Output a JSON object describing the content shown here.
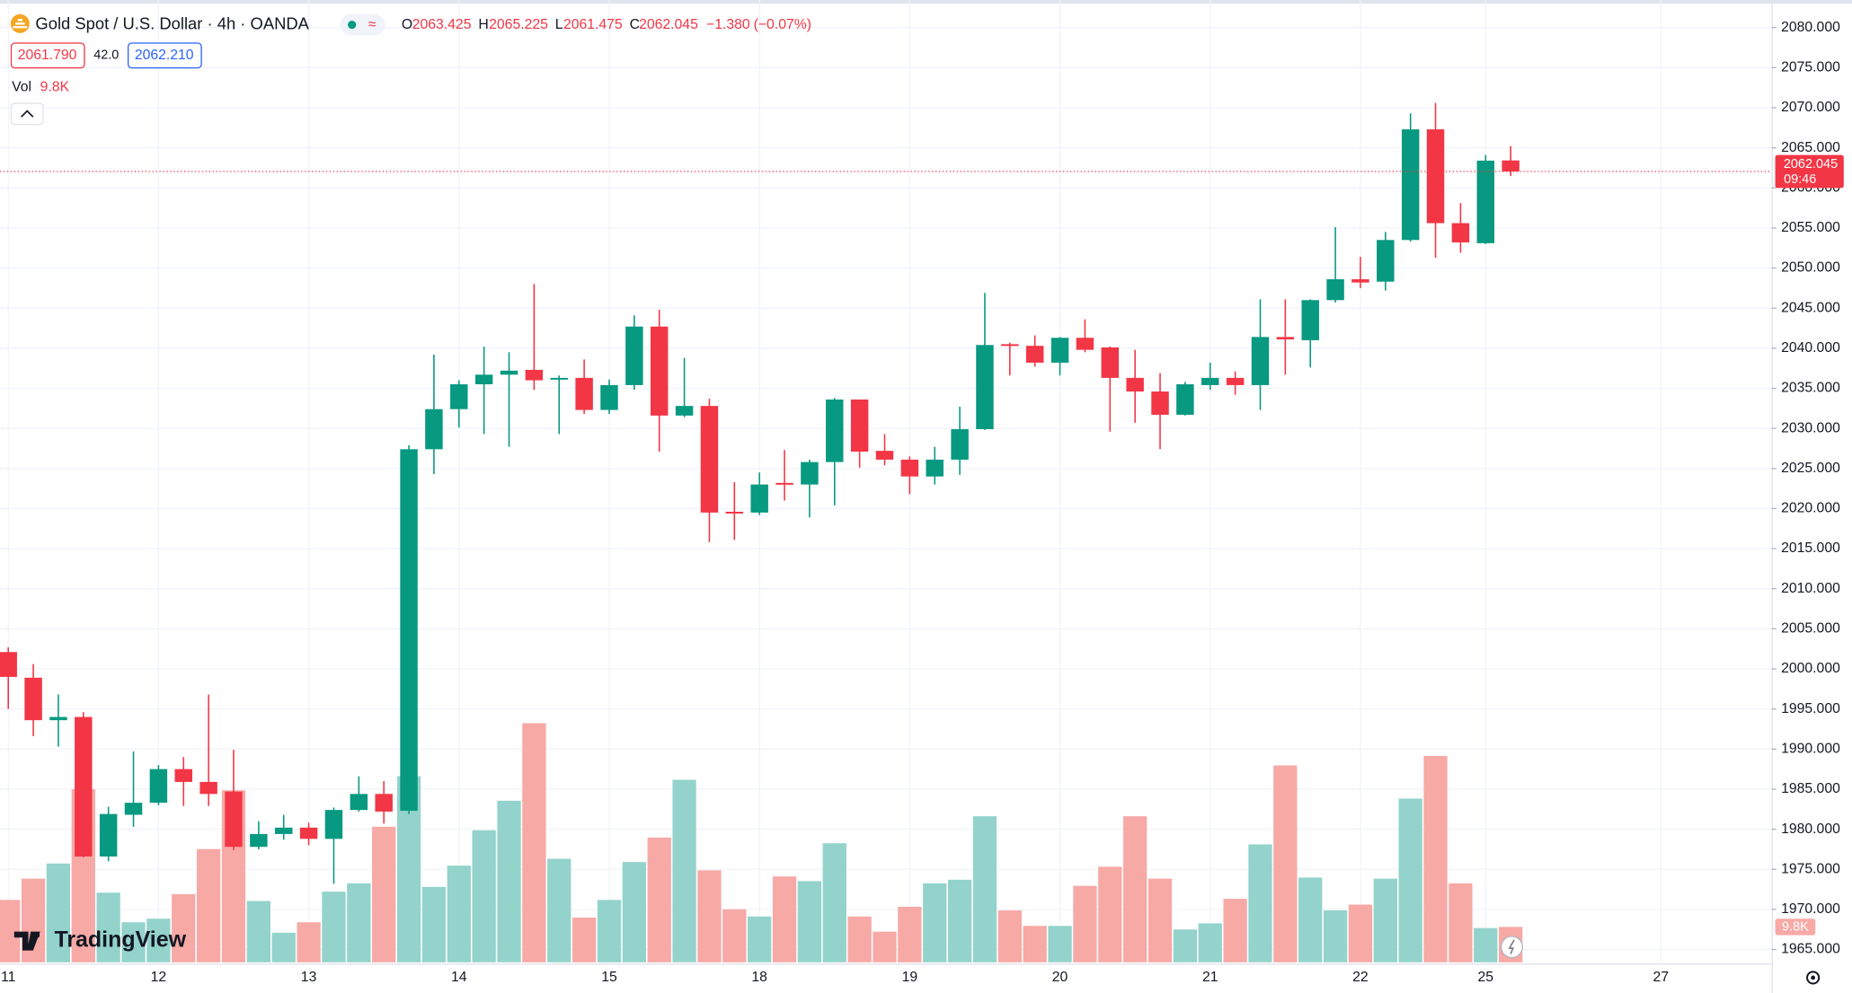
{
  "chart_data": {
    "type": "candlestick",
    "title": "Gold Spot / U.S. Dollar · 4h · OANDA",
    "ohlc_labels": [
      "O",
      "H",
      "L",
      "C"
    ],
    "change": {
      "value": -1.38,
      "label": "−1.380"
    },
    "change_percent": {
      "value": -0.07,
      "label": "(−0.07%)"
    },
    "quote": {
      "bid": {
        "value": 2061.79,
        "label": "2061.790"
      },
      "spread": {
        "value": 42,
        "label": "42.0"
      },
      "ask": {
        "value": 2062.21,
        "label": "2062.210"
      }
    },
    "countdown": "09:46",
    "watermark": "TradingView",
    "categories": [
      "11",
      null,
      null,
      null,
      null,
      null,
      "12",
      null,
      null,
      null,
      null,
      null,
      "13",
      null,
      null,
      null,
      null,
      null,
      "14",
      null,
      null,
      null,
      null,
      null,
      "15",
      null,
      null,
      null,
      null,
      null,
      "18",
      null,
      null,
      null,
      null,
      null,
      "19",
      null,
      null,
      null,
      null,
      null,
      "20",
      null,
      null,
      null,
      null,
      null,
      "21",
      null,
      null,
      null,
      null,
      null,
      "22",
      null,
      null,
      null,
      null,
      "25",
      null,
      null,
      null,
      null,
      null,
      null,
      "27"
    ],
    "open": [
      2002.1,
      1998.9,
      1993.6,
      1994.0,
      1976.6,
      1981.8,
      1983.3,
      1987.5,
      1985.9,
      1984.7,
      1977.8,
      1979.4,
      1980.2,
      1978.8,
      1982.4,
      1984.4,
      1982.3,
      2027.4,
      2032.4,
      2035.5,
      2036.7,
      2037.3,
      2036.1,
      2036.3,
      2032.3,
      2035.4,
      2042.7,
      2031.6,
      2032.8,
      2019.6,
      2019.5,
      2023.2,
      2023.0,
      2025.8,
      2033.6,
      2027.2,
      2026.1,
      2024.0,
      2026.1,
      2029.9,
      2040.5,
      2040.3,
      2038.2,
      2041.3,
      2040.1,
      2036.3,
      2034.6,
      2031.7,
      2035.4,
      2036.3,
      2035.4,
      2041.4,
      2041.0,
      2046.0,
      2048.6,
      2048.3,
      2053.5,
      2067.3,
      2055.6,
      2053.1,
      2063.425,
      null,
      null,
      null,
      null,
      null,
      null
    ],
    "high": [
      2002.7,
      2000.6,
      1996.8,
      1994.6,
      1982.8,
      1989.7,
      1988.0,
      1989.0,
      1996.8,
      1989.9,
      1981.0,
      1981.8,
      1980.8,
      1982.7,
      1986.6,
      1986.0,
      2027.9,
      2039.2,
      2036.0,
      2040.2,
      2039.5,
      2048.0,
      2036.6,
      2038.6,
      2036.1,
      2044.1,
      2044.8,
      2038.8,
      2033.7,
      2023.3,
      2024.5,
      2027.3,
      2026.1,
      2033.8,
      2033.6,
      2029.3,
      2026.5,
      2027.7,
      2032.7,
      2046.9,
      2040.7,
      2041.6,
      2041.4,
      2043.6,
      2040.2,
      2039.8,
      2036.9,
      2035.8,
      2038.2,
      2037.1,
      2046.1,
      2046.1,
      2046.1,
      2055.1,
      2051.4,
      2054.5,
      2069.3,
      2070.6,
      2058.1,
      2064.1,
      2065.225,
      null,
      null,
      null,
      null,
      null,
      null
    ],
    "low": [
      1995.0,
      1991.6,
      1990.3,
      1976.5,
      1976.0,
      1980.3,
      1983.0,
      1982.9,
      1982.9,
      1977.4,
      1977.5,
      1978.7,
      1978.0,
      1973.2,
      1982.2,
      1980.7,
      1981.9,
      2024.3,
      2030.1,
      2029.3,
      2027.7,
      2034.8,
      2029.3,
      2031.8,
      2031.8,
      2034.8,
      2027.1,
      2031.4,
      2015.8,
      2016.1,
      2019.2,
      2021.0,
      2018.9,
      2020.4,
      2025.1,
      2025.4,
      2021.8,
      2023.0,
      2024.2,
      2029.8,
      2036.6,
      2037.7,
      2036.6,
      2039.5,
      2029.6,
      2030.7,
      2027.4,
      2031.6,
      2034.8,
      2034.2,
      2032.3,
      2036.7,
      2037.6,
      2045.7,
      2047.5,
      2047.2,
      2053.3,
      2051.3,
      2051.9,
      2053.0,
      2061.475,
      null,
      null,
      null,
      null,
      null,
      null
    ],
    "close": [
      1999.0,
      1993.6,
      1994.0,
      1976.6,
      1981.9,
      1983.3,
      1987.5,
      1985.9,
      1984.4,
      1977.8,
      1979.4,
      1980.2,
      1978.8,
      1982.4,
      1984.4,
      1982.2,
      2027.4,
      2032.4,
      2035.5,
      2036.7,
      2037.2,
      2036.0,
      2036.3,
      2032.3,
      2035.4,
      2042.7,
      2031.6,
      2032.8,
      2019.5,
      2019.4,
      2023.0,
      2023.0,
      2025.8,
      2033.6,
      2027.1,
      2026.1,
      2024.0,
      2026.1,
      2029.9,
      2040.4,
      2040.3,
      2038.2,
      2041.3,
      2039.8,
      2036.3,
      2034.6,
      2031.7,
      2035.5,
      2036.3,
      2035.4,
      2041.4,
      2041.1,
      2046.0,
      2048.6,
      2048.2,
      2053.5,
      2067.3,
      2055.6,
      2053.2,
      2063.4,
      2062.045,
      null,
      null,
      null,
      null,
      null,
      null
    ],
    "volume": {
      "name": "Vol",
      "values": [
        17.3,
        23.2,
        27.4,
        48.0,
        19.3,
        11.1,
        12.1,
        18.9,
        31.4,
        47.7,
        17.0,
        8.2,
        11.1,
        19.6,
        21.9,
        37.6,
        51.6,
        20.9,
        26.8,
        36.6,
        44.8,
        66.3,
        28.7,
        12.4,
        17.3,
        27.8,
        34.6,
        50.6,
        25.5,
        14.7,
        12.7,
        23.8,
        22.5,
        33.0,
        12.7,
        8.5,
        15.4,
        21.9,
        22.9,
        40.5,
        14.4,
        10.1,
        10.1,
        21.2,
        26.5,
        40.5,
        23.2,
        9.1,
        10.8,
        17.6,
        32.7,
        54.6,
        23.5,
        14.4,
        16.0,
        23.2,
        45.4,
        57.2,
        21.9,
        9.5,
        9.8,
        null,
        null,
        null,
        null,
        null,
        null
      ],
      "value_labels": [
        null,
        null,
        null,
        null,
        null,
        null,
        null,
        null,
        null,
        null,
        null,
        null,
        null,
        null,
        null,
        null,
        null,
        null,
        null,
        null,
        null,
        null,
        null,
        null,
        null,
        null,
        null,
        null,
        null,
        null,
        null,
        null,
        null,
        null,
        null,
        null,
        null,
        null,
        null,
        null,
        null,
        null,
        null,
        null,
        null,
        null,
        null,
        null,
        null,
        null,
        null,
        null,
        null,
        null,
        null,
        null,
        null,
        null,
        null,
        null,
        "9.8K",
        null,
        null,
        null,
        null,
        null,
        null
      ]
    },
    "up_color": "#089981",
    "down_color": "#f23645",
    "volume_up_color": "#93d3cb",
    "volume_down_color": "#f7a9a6",
    "ylim": [
      1963.4,
      2082.7
    ],
    "yticks": [
      {
        "value": 1965,
        "label": "1965.000"
      },
      {
        "value": 1970,
        "label": "1970.000"
      },
      {
        "value": 1975,
        "label": "1975.000"
      },
      {
        "value": 1980,
        "label": "1980.000"
      },
      {
        "value": 1985,
        "label": "1985.000"
      },
      {
        "value": 1990,
        "label": "1990.000"
      },
      {
        "value": 1995,
        "label": "1995.000"
      },
      {
        "value": 2000,
        "label": "2000.000"
      },
      {
        "value": 2005,
        "label": "2005.000"
      },
      {
        "value": 2010,
        "label": "2010.000"
      },
      {
        "value": 2015,
        "label": "2015.000"
      },
      {
        "value": 2020,
        "label": "2020.000"
      },
      {
        "value": 2025,
        "label": "2025.000"
      },
      {
        "value": 2030,
        "label": "2030.000"
      },
      {
        "value": 2035,
        "label": "2035.000"
      },
      {
        "value": 2040,
        "label": "2040.000"
      },
      {
        "value": 2045,
        "label": "2045.000"
      },
      {
        "value": 2050,
        "label": "2050.000"
      },
      {
        "value": 2055,
        "label": "2055.000"
      },
      {
        "value": 2060,
        "label": "2060.000"
      },
      {
        "value": 2065,
        "label": "2065.000"
      },
      {
        "value": 2070,
        "label": "2070.000"
      },
      {
        "value": 2075,
        "label": "2075.000"
      },
      {
        "value": 2080,
        "label": "2080.000"
      }
    ],
    "grid": true
  }
}
